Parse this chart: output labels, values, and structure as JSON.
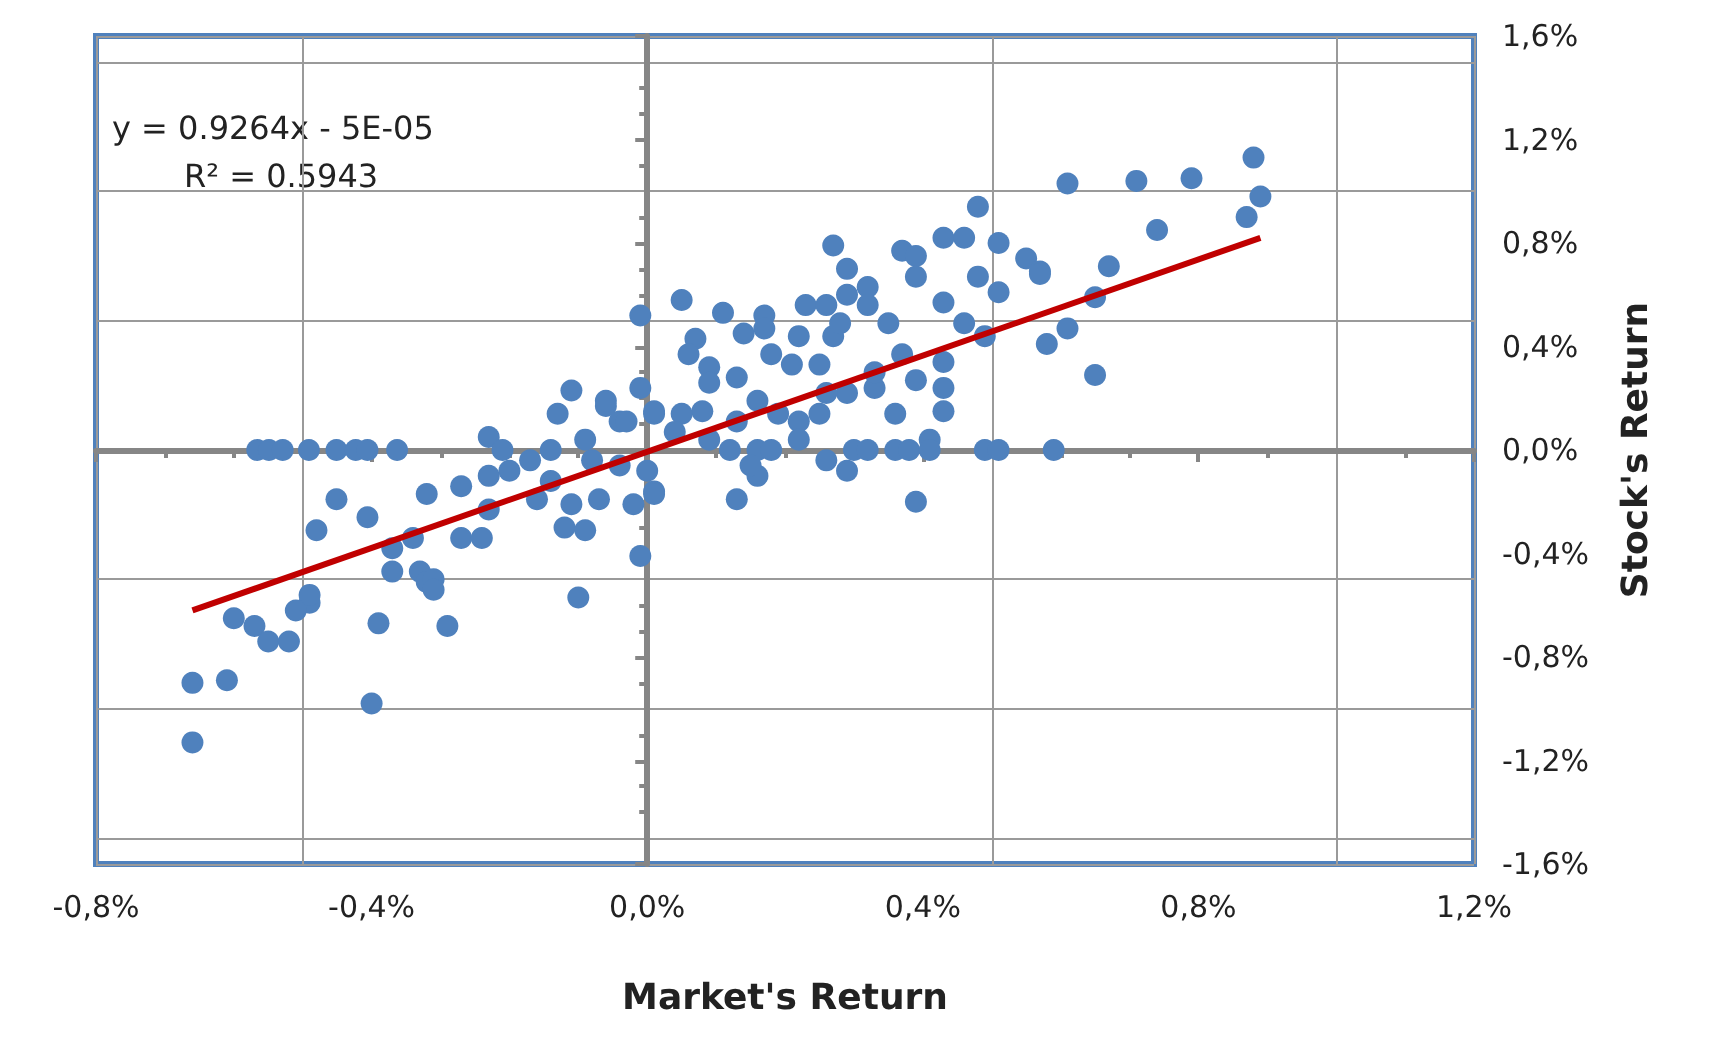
{
  "chart_data": {
    "type": "scatter",
    "xlabel": "Market's Return",
    "ylabel": "Stock's Return",
    "xlim": [
      -0.8,
      1.2
    ],
    "xticks": [
      {
        "value": -0.8,
        "label": "-0,8%"
      },
      {
        "value": -0.4,
        "label": "-0,4%"
      },
      {
        "value": 0,
        "label": "0,0%"
      },
      {
        "value": 0.4,
        "label": "0,4%"
      },
      {
        "value": 0.8,
        "label": "0,8%"
      },
      {
        "value": 1.2,
        "label": "1,2%"
      }
    ],
    "ylim": [
      -1.6,
      1.6
    ],
    "yticks": [
      {
        "value": -1.6,
        "label": "-1,6%"
      },
      {
        "value": -1.2,
        "label": "-1,2%"
      },
      {
        "value": -0.8,
        "label": "-0,8%"
      },
      {
        "value": -0.4,
        "label": "-0,4%"
      },
      {
        "value": 0,
        "label": "0,0%"
      },
      {
        "value": 0.4,
        "label": "0,4%"
      },
      {
        "value": 0.8,
        "label": "0,8%"
      },
      {
        "value": 1.2,
        "label": "1,2%"
      },
      {
        "value": 1.6,
        "label": "1,6%"
      }
    ],
    "grid": true,
    "annotations": [
      "y = 0.9264x - 5E-05",
      "R² = 0.5943"
    ],
    "series": [
      {
        "color": "#4f81bd",
        "marker": "circle",
        "x": [
          -0.566,
          -0.549,
          -0.529,
          -0.491,
          -0.451,
          -0.423,
          -0.406,
          -0.363,
          -0.451,
          -0.48,
          -0.406,
          -0.37,
          -0.37,
          -0.34,
          -0.32,
          -0.27,
          -0.33,
          -0.32,
          -0.31,
          -0.31,
          -0.29,
          -0.27,
          -0.24,
          -0.23,
          -0.23,
          -0.2,
          -0.23,
          -0.21,
          -0.39,
          -0.4,
          -0.49,
          -0.49,
          -0.51,
          -0.6,
          -0.57,
          -0.55,
          -0.52,
          -0.66,
          -0.61,
          -0.66,
          -0.17,
          -0.16,
          -0.14,
          -0.13,
          -0.11,
          -0.14,
          -0.12,
          -0.09,
          -0.11,
          -0.1,
          -0.07,
          -0.06,
          -0.04,
          -0.01,
          -0.01,
          -0.02,
          0.01,
          0.01,
          -0.09,
          -0.08,
          -0.04,
          -0.01,
          0.01,
          0.05,
          0.07,
          0.06,
          0.09,
          0.09,
          0.11,
          0.14,
          0.17,
          0.17,
          0.18,
          0.21,
          0.23,
          0.22,
          0.26,
          0.27,
          0.29,
          0.29,
          0.32,
          0.32,
          0.35,
          0.37,
          0.39,
          0.39,
          0.43,
          0.46,
          0.48,
          0.43,
          0.43,
          0.43,
          0.43,
          0.39,
          0.36,
          0.39,
          0.33,
          0.33,
          0.29,
          0.26,
          0.25,
          0.27,
          0.28,
          0.25,
          0.22,
          0.19,
          0.16,
          0.13,
          0.13,
          0.08,
          0.05,
          0.04,
          0.09,
          0.12,
          0.16,
          0.18,
          0.22,
          0.26,
          0.29,
          0.3,
          0.32,
          0.36,
          0.38,
          0.41,
          0.41,
          0.49,
          0.51,
          0.13,
          0.16,
          0.15,
          0.0,
          0.01,
          -0.06,
          -0.03,
          0.37,
          0.51,
          0.55,
          0.48,
          0.51,
          0.49,
          0.57,
          0.61,
          0.71,
          0.79,
          0.88,
          0.89,
          0.87,
          0.74,
          0.67,
          0.65,
          0.65,
          0.61,
          0.58,
          0.57,
          0.46,
          0.59
        ],
        "values": [
          0,
          0,
          0,
          0,
          0,
          0,
          0,
          0,
          -0.19,
          -0.31,
          -0.26,
          -0.38,
          -0.47,
          -0.34,
          -0.17,
          -0.14,
          -0.47,
          -0.51,
          -0.5,
          -0.54,
          -0.68,
          -0.34,
          -0.34,
          -0.23,
          -0.1,
          -0.08,
          0.05,
          0,
          -0.67,
          -0.98,
          -0.59,
          -0.56,
          -0.62,
          -0.65,
          -0.68,
          -0.74,
          -0.74,
          -0.9,
          -0.89,
          -1.13,
          -0.04,
          -0.19,
          0,
          0.14,
          0.23,
          -0.12,
          -0.3,
          -0.31,
          -0.21,
          -0.57,
          -0.19,
          0.17,
          0.11,
          0.24,
          -0.41,
          -0.21,
          -0.16,
          0.14,
          0.04,
          -0.04,
          -0.06,
          0.52,
          0.15,
          0.58,
          0.43,
          0.37,
          0.32,
          0.26,
          0.53,
          0.45,
          0.52,
          0.47,
          0.37,
          0.33,
          0.56,
          0.44,
          0.56,
          0.79,
          0.7,
          0.6,
          0.63,
          0.56,
          0.49,
          0.77,
          0.75,
          0.67,
          0.82,
          0.82,
          0.94,
          0.57,
          0.34,
          0.24,
          0.15,
          0.27,
          0.14,
          -0.2,
          0.24,
          0.3,
          0.22,
          0.22,
          0.33,
          0.44,
          0.49,
          0.14,
          0.11,
          0.14,
          0.19,
          0.28,
          0.11,
          0.15,
          0.14,
          0.07,
          0.04,
          0,
          0,
          0,
          0.04,
          -0.04,
          -0.08,
          0,
          0,
          0,
          0,
          0.04,
          0,
          0,
          0,
          -0.19,
          -0.1,
          -0.06,
          -0.08,
          -0.17,
          0.19,
          0.11,
          0.37,
          0.8,
          0.74,
          0.67,
          0.61,
          0.44,
          0.69,
          1.03,
          1.04,
          1.05,
          1.13,
          0.98,
          0.9,
          0.85,
          0.71,
          0.59,
          0.29,
          0.47,
          0.41,
          0.68,
          0.49,
          0
        ]
      },
      {
        "type": "line",
        "color": "#c00000",
        "line_style": "solid",
        "marker": "none",
        "x": [
          -0.66,
          0.89
        ],
        "values": [
          -0.62,
          0.82
        ]
      }
    ]
  }
}
